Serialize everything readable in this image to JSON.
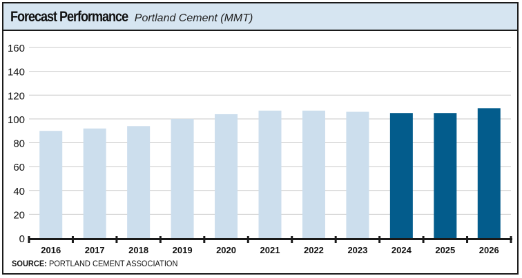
{
  "header": {
    "title": "Forecast Performance",
    "subtitle": "Portland Cement (MMT)"
  },
  "source": {
    "label": "SOURCE:",
    "text": " PORTLAND CEMENT ASSOCIATION"
  },
  "colors": {
    "header_bg": "#d6e5f1",
    "actual_bar": "#ccdeed",
    "forecast_bar": "#035c8c",
    "gridline": "#c8c8c8",
    "axis": "#1a1a1a"
  },
  "chart_data": {
    "type": "bar",
    "categories": [
      "2016",
      "2017",
      "2018",
      "2019",
      "2020",
      "2021",
      "2022",
      "2023",
      "2024",
      "2025",
      "2026"
    ],
    "values": [
      90,
      92,
      94,
      100,
      104,
      107,
      107,
      106,
      105,
      105,
      109
    ],
    "forecast_flags": [
      false,
      false,
      false,
      false,
      false,
      false,
      false,
      false,
      true,
      true,
      true
    ],
    "ylim": [
      0,
      160
    ],
    "yticks": [
      0,
      20,
      40,
      60,
      80,
      100,
      120,
      140,
      160
    ],
    "grid": true,
    "title": "Forecast Performance",
    "subtitle": "Portland Cement (MMT)",
    "xlabel": "",
    "ylabel": ""
  }
}
